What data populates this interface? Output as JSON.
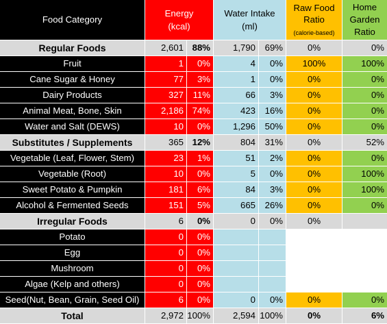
{
  "header": {
    "food_category": "Food Category",
    "energy_line1": "Energy",
    "energy_line2": "(kcal)",
    "water_line1": "Water Intake",
    "water_line2": "(ml)",
    "raw_line1": "Raw Food",
    "raw_line2": "Ratio",
    "raw_line3": "(calorie-based)",
    "garden_line1": "Home",
    "garden_line2": "Garden",
    "garden_line3": "Ratio"
  },
  "rows": [
    {
      "kind": "section",
      "name": "Regular Foods",
      "energy": "2,601",
      "energy_pct": "88%",
      "water": "1,790",
      "water_pct": "69%",
      "raw": "0%",
      "garden": "0%",
      "energy_pct_bold": true
    },
    {
      "kind": "item",
      "name": "Fruit",
      "energy": "1",
      "energy_pct": "0%",
      "water": "4",
      "water_pct": "0%",
      "raw": "100%",
      "garden": "100%"
    },
    {
      "kind": "item",
      "name": "Cane Sugar & Honey",
      "energy": "77",
      "energy_pct": "3%",
      "water": "1",
      "water_pct": "0%",
      "raw": "0%",
      "garden": "0%"
    },
    {
      "kind": "item",
      "name": "Dairy Products",
      "energy": "327",
      "energy_pct": "11%",
      "water": "66",
      "water_pct": "3%",
      "raw": "0%",
      "garden": "0%"
    },
    {
      "kind": "item",
      "name": "Animal Meat, Bone, Skin",
      "energy": "2,186",
      "energy_pct": "74%",
      "water": "423",
      "water_pct": "16%",
      "raw": "0%",
      "garden": "0%"
    },
    {
      "kind": "item",
      "name": "Water and Salt (DEWS)",
      "energy": "10",
      "energy_pct": "0%",
      "water": "1,296",
      "water_pct": "50%",
      "raw": "0%",
      "garden": "0%"
    },
    {
      "kind": "section",
      "name": "Substitutes / Supplements",
      "energy": "365",
      "energy_pct": "12%",
      "water": "804",
      "water_pct": "31%",
      "raw": "0%",
      "garden": "52%",
      "energy_pct_bold": true
    },
    {
      "kind": "item",
      "name": "Vegetable (Leaf, Flower, Stem)",
      "energy": "23",
      "energy_pct": "1%",
      "water": "51",
      "water_pct": "2%",
      "raw": "0%",
      "garden": "0%"
    },
    {
      "kind": "item",
      "name": "Vegetable (Root)",
      "energy": "10",
      "energy_pct": "0%",
      "water": "5",
      "water_pct": "0%",
      "raw": "0%",
      "garden": "100%"
    },
    {
      "kind": "item",
      "name": "Sweet Potato & Pumpkin",
      "energy": "181",
      "energy_pct": "6%",
      "water": "84",
      "water_pct": "3%",
      "raw": "0%",
      "garden": "100%"
    },
    {
      "kind": "item",
      "name": "Alcohol & Fermented Seeds",
      "energy": "151",
      "energy_pct": "5%",
      "water": "665",
      "water_pct": "26%",
      "raw": "0%",
      "garden": "0%"
    },
    {
      "kind": "section",
      "name": "Irregular Foods",
      "energy": "6",
      "energy_pct": "0%",
      "water": "0",
      "water_pct": "0%",
      "raw": "0%",
      "garden": "",
      "energy_pct_bold": true
    },
    {
      "kind": "item",
      "name": "Potato",
      "energy": "0",
      "energy_pct": "0%",
      "water": "",
      "water_pct": "",
      "raw": "",
      "garden": ""
    },
    {
      "kind": "item",
      "name": "Egg",
      "energy": "0",
      "energy_pct": "0%",
      "water": "",
      "water_pct": "",
      "raw": "",
      "garden": ""
    },
    {
      "kind": "item",
      "name": "Mushroom",
      "energy": "0",
      "energy_pct": "0%",
      "water": "",
      "water_pct": "",
      "raw": "",
      "garden": ""
    },
    {
      "kind": "item",
      "name": "Algae (Kelp and others)",
      "energy": "0",
      "energy_pct": "0%",
      "water": "",
      "water_pct": "",
      "raw": "",
      "garden": ""
    },
    {
      "kind": "item",
      "name": "Seed(Nut, Bean, Grain, Seed Oil)",
      "energy": "6",
      "energy_pct": "0%",
      "water": "0",
      "water_pct": "0%",
      "raw": "0%",
      "garden": "0%"
    },
    {
      "kind": "total",
      "name": "Total",
      "energy": "2,972",
      "energy_pct": "100%",
      "water": "2,594",
      "water_pct": "100%",
      "raw": "0%",
      "garden": "6%"
    }
  ],
  "colors": {
    "energy": "#ff0000",
    "water": "#b7dee8",
    "raw_food": "#ffc000",
    "home_garden": "#92d050",
    "category": "#000000",
    "section": "#d9d9d9"
  }
}
